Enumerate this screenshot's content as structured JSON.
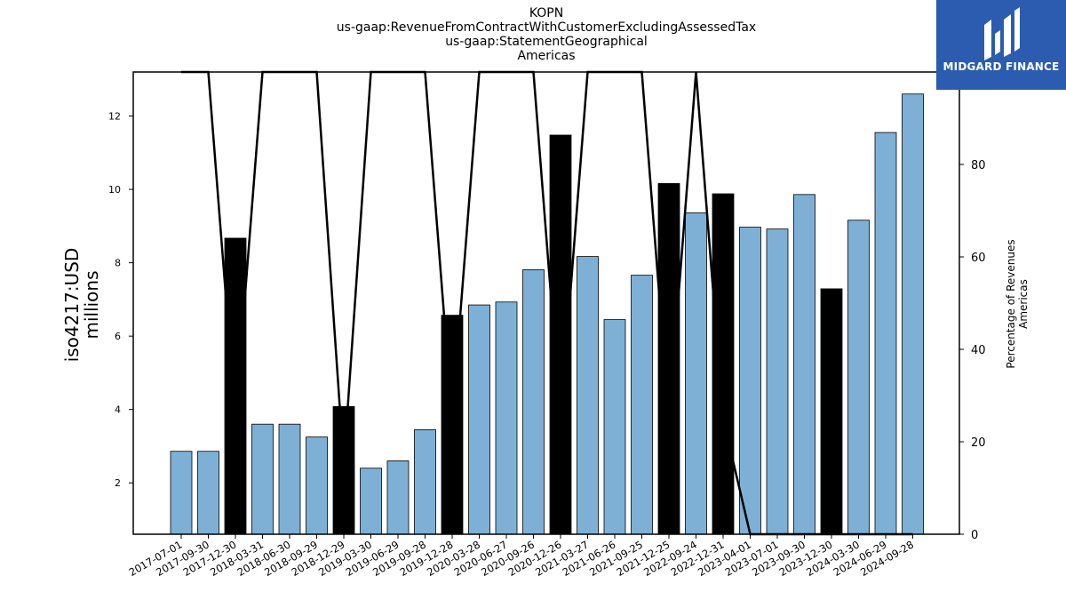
{
  "chart_data": {
    "type": "bar",
    "title_lines": [
      "KOPN",
      "us-gaap:RevenueFromContractWithCustomerExcludingAssessedTax",
      "us-gaap:StatementGeographical",
      "Americas"
    ],
    "ylabel": [
      "iso4217:USD",
      "millions"
    ],
    "ylabel_right": [
      "Percentage of Revenues",
      "Americas"
    ],
    "categories": [
      "2017-07-01",
      "2017-09-30",
      "2017-12-30",
      "2018-03-31",
      "2018-06-30",
      "2018-09-29",
      "2018-12-29",
      "2019-03-30",
      "2019-06-29",
      "2019-09-28",
      "2019-12-28",
      "2020-03-28",
      "2020-06-27",
      "2020-09-26",
      "2020-12-26",
      "2021-03-27",
      "2021-06-26",
      "2021-09-25",
      "2021-12-25",
      "2022-09-24",
      "2022-12-31",
      "2023-04-01",
      "2023-07-01",
      "2023-09-30",
      "2023-12-30",
      "2024-03-30",
      "2024-06-29",
      "2024-09-28"
    ],
    "series": [
      {
        "values": [
          2.86,
          2.86,
          8.67,
          3.6,
          3.6,
          3.25,
          4.08,
          2.4,
          2.6,
          3.45,
          6.57,
          6.85,
          6.93,
          7.81,
          11.48,
          8.17,
          6.45,
          7.66,
          10.16,
          9.36,
          9.88,
          8.97,
          8.92,
          9.86,
          7.29,
          9.16,
          11.55,
          12.6
        ],
        "highlighted": [
          false,
          false,
          true,
          false,
          false,
          false,
          true,
          false,
          false,
          false,
          true,
          false,
          false,
          false,
          true,
          false,
          false,
          false,
          true,
          false,
          true,
          false,
          false,
          false,
          true,
          false,
          false,
          false
        ]
      },
      {
        "axis": "right",
        "type": "line",
        "values": [
          100,
          100,
          25,
          100,
          100,
          100,
          15,
          100,
          100,
          100,
          25,
          100,
          100,
          100,
          25,
          100,
          100,
          100,
          25,
          100,
          25,
          0,
          0,
          0,
          0,
          0,
          0,
          0
        ]
      }
    ],
    "ylim": [
      0.6,
      13.2
    ],
    "y_ticks": [
      2,
      4,
      6,
      8,
      10,
      12
    ],
    "y2lim": [
      0,
      100
    ],
    "y2_ticks": [
      0,
      20,
      40,
      60,
      80,
      100
    ],
    "colors": {
      "bar": "#7eb0d5",
      "bar_highlight": "#000000",
      "line": "#000000"
    }
  },
  "logo": {
    "text": "MIDGARD FINANCE",
    "bg": "#2b5cb0"
  }
}
